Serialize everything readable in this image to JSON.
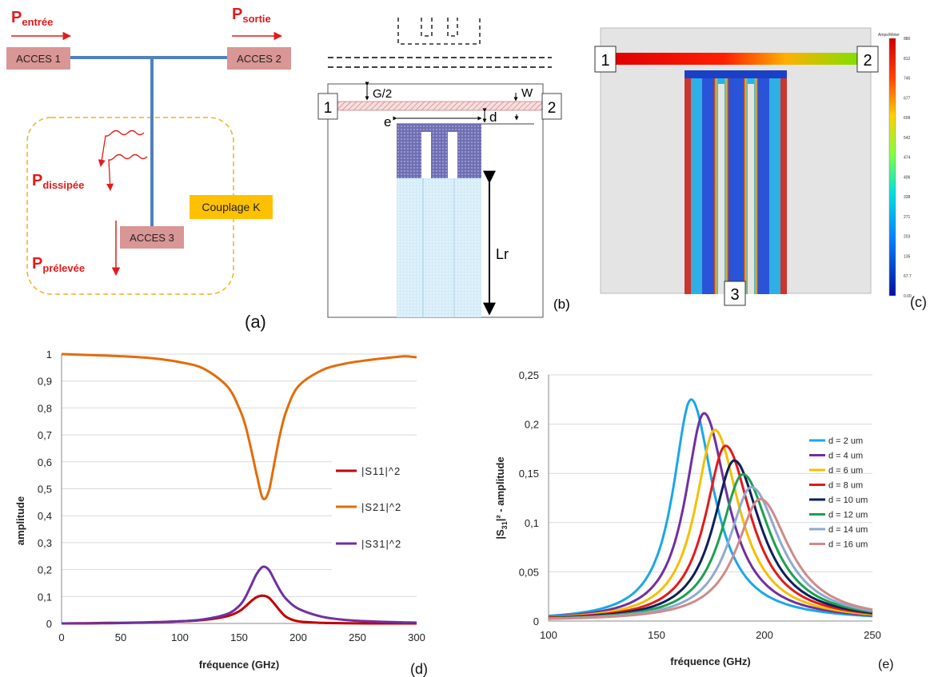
{
  "panel_a": {
    "letter": "(a)",
    "p_in_main": "P",
    "p_in_sub": "entrée",
    "p_out_main": "P",
    "p_out_sub": "sortie",
    "p_diss_main": "P",
    "p_diss_sub": "dissipée",
    "p_prel_main": "P",
    "p_prel_sub": "prélevée",
    "port1": "ACCES 1",
    "port2": "ACCES 2",
    "port3": "ACCES 3",
    "coupling": "Couplage K"
  },
  "panel_b": {
    "letter": "(b)",
    "port1": "1",
    "port2": "2",
    "g2": "G/2",
    "w": "W",
    "d": "d",
    "e": "e",
    "lr": "Lr"
  },
  "panel_c": {
    "letter": "(c)",
    "port1": "1",
    "port2": "2",
    "port3": "3",
    "colorbar_title": "Amps/Meter",
    "colorbar_ticks": [
      "880",
      "812",
      "745",
      "677",
      "609",
      "542",
      "474",
      "406",
      "338",
      "271",
      "203",
      "135",
      "67.7",
      "0.00"
    ]
  },
  "chart_data": [
    {
      "type": "line",
      "panel_letter": "(d)",
      "xlabel": "fréquence (GHz)",
      "ylabel": "amplitude",
      "xlim": [
        0,
        300
      ],
      "ylim": [
        0,
        1
      ],
      "x_ticks": [
        "0",
        "50",
        "100",
        "150",
        "200",
        "250",
        "300"
      ],
      "y_ticks": [
        "0",
        "0,1",
        "0,2",
        "0,3",
        "0,4",
        "0,5",
        "0,6",
        "0,7",
        "0,8",
        "0,9",
        "1"
      ],
      "legend_placement": "right",
      "grid": "horizontal",
      "x": [
        0,
        20,
        40,
        60,
        80,
        100,
        120,
        140,
        150,
        155,
        160,
        165,
        170,
        175,
        180,
        185,
        190,
        200,
        220,
        240,
        260,
        280,
        290,
        300
      ],
      "series": [
        {
          "name": "|S11|^2",
          "color": "#c00000",
          "values": [
            0,
            0.001,
            0.002,
            0.003,
            0.005,
            0.008,
            0.013,
            0.027,
            0.045,
            0.062,
            0.082,
            0.098,
            0.103,
            0.096,
            0.072,
            0.045,
            0.024,
            0.008,
            0.002,
            0.001,
            0,
            0,
            0,
            0
          ]
        },
        {
          "name": "|S21|^2",
          "color": "#e36c0a",
          "values": [
            1,
            0.997,
            0.994,
            0.99,
            0.983,
            0.97,
            0.946,
            0.88,
            0.8,
            0.74,
            0.65,
            0.55,
            0.465,
            0.49,
            0.6,
            0.71,
            0.79,
            0.88,
            0.94,
            0.965,
            0.978,
            0.988,
            0.992,
            0.988
          ]
        },
        {
          "name": "|S31|^2",
          "color": "#7030a0",
          "values": [
            0,
            0,
            0.001,
            0.002,
            0.004,
            0.008,
            0.015,
            0.035,
            0.065,
            0.095,
            0.14,
            0.185,
            0.21,
            0.2,
            0.16,
            0.12,
            0.09,
            0.055,
            0.025,
            0.013,
            0.008,
            0.005,
            0.004,
            0.003
          ]
        }
      ]
    },
    {
      "type": "line",
      "panel_letter": "(e)",
      "xlabel": "fréquence (GHz)",
      "ylabel_main": "|S",
      "ylabel_sub": "31",
      "ylabel_rest": "|² - amplitude",
      "xlim": [
        100,
        250
      ],
      "ylim": [
        0,
        0.25
      ],
      "x_ticks": [
        "100",
        "150",
        "200",
        "250"
      ],
      "y_ticks": [
        "0",
        "0,05",
        "0,1",
        "0,15",
        "0,2",
        "0,25"
      ],
      "legend_placement": "right",
      "grid": "horizontal",
      "series": [
        {
          "name": "d = 2 um",
          "color": "#1aa7e8",
          "f0": 166,
          "peak": 0.225
        },
        {
          "name": "d = 4 um",
          "color": "#7030a0",
          "f0": 172,
          "peak": 0.211
        },
        {
          "name": "d = 6 um",
          "color": "#f4c000",
          "f0": 177,
          "peak": 0.194
        },
        {
          "name": "d = 8 um",
          "color": "#e41a1a",
          "f0": 182,
          "peak": 0.178
        },
        {
          "name": "d = 10 um",
          "color": "#0b1f5a",
          "f0": 186,
          "peak": 0.163
        },
        {
          "name": "d = 12 um",
          "color": "#1ea04e",
          "f0": 190,
          "peak": 0.149
        },
        {
          "name": "d = 14 um",
          "color": "#8faad0",
          "f0": 194,
          "peak": 0.136
        },
        {
          "name": "d = 16 um",
          "color": "#d08a8a",
          "f0": 198,
          "peak": 0.124
        }
      ]
    }
  ]
}
